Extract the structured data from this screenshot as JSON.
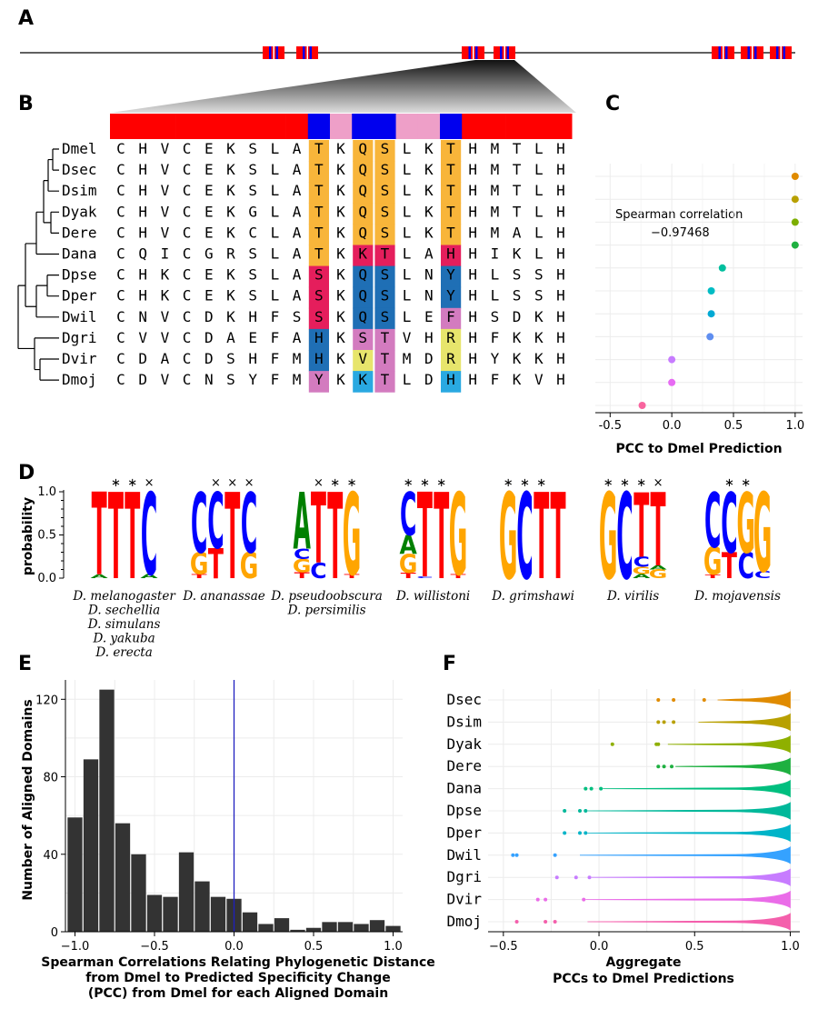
{
  "panels": {
    "A": "A",
    "B": "B",
    "C": "C",
    "D": "D",
    "E": "E",
    "F": "F"
  },
  "colors": {
    "domain_red": "#ff0000",
    "domain_blue": "#0000ee",
    "pink": "#ee9fc8",
    "orange": "#f8b53a",
    "magenta": "#e51e5c",
    "dark_blue": "#1f6fb5",
    "light_blue": "#29a9e1",
    "yellow": "#e7e56c",
    "purple": "#d37bbf",
    "bar": "#333333",
    "vline": "#1f1fbf"
  },
  "alignment": {
    "species": [
      "Dmel",
      "Dsec",
      "Dsim",
      "Dyak",
      "Dere",
      "Dana",
      "Dpse",
      "Dper",
      "Dwil",
      "Dgri",
      "Dvir",
      "Dmoj"
    ],
    "rows": [
      "CHVCEKSLATKQSLKTHMTLH",
      "CHVCEKSLATKQSLKTHMTLH",
      "CHVCEKSLATKQSLKTHMTLH",
      "CHVCEKGLATKQSLKTHMTLH",
      "CHVCEKCLATKQSLKTHMALH",
      "CQICGRSLATKKTLAHHIKLH",
      "CHKCEKSLASKQSLNYHLSSH",
      "CHKCEKSLASKQSLNYHLSSH",
      "CNVCDKHFSSKQSLEFHSDKH",
      "CVVCDAEFAHKSTVHRHFKKH",
      "CDACDSHFMHKVTMDRHYKKH",
      "CDVCNSYFMYKKTLDHHFKVH"
    ],
    "header_colors": [
      "red",
      "red",
      "red",
      "red",
      "red",
      "red",
      "red",
      "red",
      "red",
      "blue",
      "pink",
      "blue",
      "blue",
      "pink",
      "pink",
      "blue",
      "red",
      "red",
      "red",
      "red",
      "red"
    ]
  },
  "chart_data": [
    {
      "panel": "C",
      "type": "scatter",
      "title": "Spearman correlation",
      "annotation": "−0.97468",
      "xlabel": "PCC to Dmel Prediction",
      "xticks": [
        "-0.5",
        "0.0",
        "0.5",
        "1.0"
      ],
      "xlim": [
        -0.62,
        1.06
      ],
      "points": [
        {
          "species": "Dsec",
          "x": 1.0,
          "color": "#e08b00"
        },
        {
          "species": "Dsim",
          "x": 1.0,
          "color": "#b8a000"
        },
        {
          "species": "Dyak",
          "x": 1.0,
          "color": "#7cae00"
        },
        {
          "species": "Dere",
          "x": 1.0,
          "color": "#1eb040"
        },
        {
          "species": "Dana",
          "x": 0.41,
          "color": "#00bf9e"
        },
        {
          "species": "Dpse",
          "x": 0.32,
          "color": "#00bcc4"
        },
        {
          "species": "Dper",
          "x": 0.32,
          "color": "#00a9d4"
        },
        {
          "species": "Dwil",
          "x": 0.31,
          "color": "#5f8ef0"
        },
        {
          "species": "Dgri",
          "x": 0.0,
          "color": "#c77cff"
        },
        {
          "species": "Dvir",
          "x": 0.0,
          "color": "#e76bf3"
        },
        {
          "species": "Dmoj",
          "x": -0.24,
          "color": "#f8649e"
        }
      ]
    },
    {
      "panel": "D",
      "type": "sequence-logo",
      "ylabel": "probability",
      "yticks": [
        "0.0",
        "0.5",
        "1.0"
      ],
      "logos": [
        {
          "stars": [
            "∗",
            "∗",
            "×"
          ],
          "star_pos": [
            1,
            2,
            3
          ]
        },
        {
          "stars": [
            "×",
            "×",
            "×"
          ],
          "star_pos": [
            1,
            2,
            3
          ]
        },
        {
          "stars": [
            "×",
            "∗",
            "∗"
          ],
          "star_pos": [
            1,
            2,
            3
          ]
        },
        {
          "stars": [
            "∗",
            "∗",
            "∗"
          ],
          "star_pos": [
            0,
            1,
            2
          ]
        },
        {
          "stars": [
            "∗",
            "∗",
            "∗"
          ],
          "star_pos": [
            0,
            1,
            2
          ]
        },
        {
          "stars": [
            "∗",
            "∗",
            "∗",
            "×"
          ],
          "star_pos": [
            0,
            1,
            2,
            3
          ]
        },
        {
          "stars": [
            "∗",
            "∗"
          ],
          "star_pos": [
            1,
            2
          ]
        }
      ],
      "labels": [
        [
          "D. melanogaster",
          "D. sechellia",
          "D. simulans",
          "D. yakuba",
          "D. erecta"
        ],
        [
          "D. ananassae"
        ],
        [
          "D. pseudoobscura",
          "D. persimilis"
        ],
        [
          "D. willistoni"
        ],
        [
          "D. grimshawi"
        ],
        [
          "D. virilis"
        ],
        [
          "D. mojavensis"
        ]
      ]
    },
    {
      "panel": "E",
      "type": "bar",
      "ylabel": "Number of Aligned Domains",
      "xlabel_lines": [
        "Spearman Correlations Relating Phylogenetic Distance",
        "from Dmel to Predicted Specificity Change",
        "(PCC) from Dmel for each Aligned Domain"
      ],
      "xticks": [
        "−1.0",
        "−0.5",
        "0.0",
        "0.5",
        "1.0"
      ],
      "yticks": [
        "0",
        "40",
        "80",
        "120"
      ],
      "ylim": [
        0,
        130
      ],
      "xlim": [
        -1.06,
        1.06
      ],
      "bin_width": 0.1,
      "bin_centers": [
        -1.0,
        -0.9,
        -0.8,
        -0.7,
        -0.6,
        -0.5,
        -0.4,
        -0.3,
        -0.2,
        -0.1,
        0.0,
        0.1,
        0.2,
        0.3,
        0.4,
        0.5,
        0.6,
        0.7,
        0.8,
        0.9,
        1.0
      ],
      "values": [
        59,
        89,
        125,
        56,
        40,
        19,
        18,
        41,
        26,
        18,
        17,
        10,
        4,
        7,
        1,
        2,
        5,
        5,
        4,
        6,
        3
      ],
      "vline_x": 0.0
    },
    {
      "panel": "F",
      "type": "violin",
      "xlabel_lines": [
        "Aggregate",
        "PCCs to Dmel Predictions"
      ],
      "xticks": [
        "−0.5",
        "0.0",
        "0.5",
        "1.0"
      ],
      "xlim": [
        -0.58,
        1.05
      ],
      "species": [
        "Dsec",
        "Dsim",
        "Dyak",
        "Dere",
        "Dana",
        "Dpse",
        "Dper",
        "Dwil",
        "Dgri",
        "Dvir",
        "Dmoj"
      ],
      "colors": [
        "#e08b00",
        "#b8a000",
        "#8fb000",
        "#1eb040",
        "#00bf7f",
        "#00b89a",
        "#00b4c8",
        "#35a2ff",
        "#c77cff",
        "#ea6ce8",
        "#f45fac"
      ],
      "violin_start": [
        0.62,
        0.52,
        0.36,
        0.4,
        0.02,
        -0.06,
        -0.06,
        -0.1,
        -0.04,
        -0.07,
        -0.06
      ],
      "outliers": [
        [
          0.31,
          0.39,
          0.55
        ],
        [
          0.31,
          0.34,
          0.39
        ],
        [
          0.07,
          0.3,
          0.31
        ],
        [
          0.31,
          0.34,
          0.38
        ],
        [
          -0.07,
          -0.04,
          0.01
        ],
        [
          -0.18,
          -0.1,
          -0.07
        ],
        [
          -0.18,
          -0.1,
          -0.07
        ],
        [
          -0.45,
          -0.43,
          -0.23
        ],
        [
          -0.22,
          -0.12,
          -0.05
        ],
        [
          -0.32,
          -0.28,
          -0.08
        ],
        [
          -0.43,
          -0.28,
          -0.23
        ]
      ]
    }
  ]
}
